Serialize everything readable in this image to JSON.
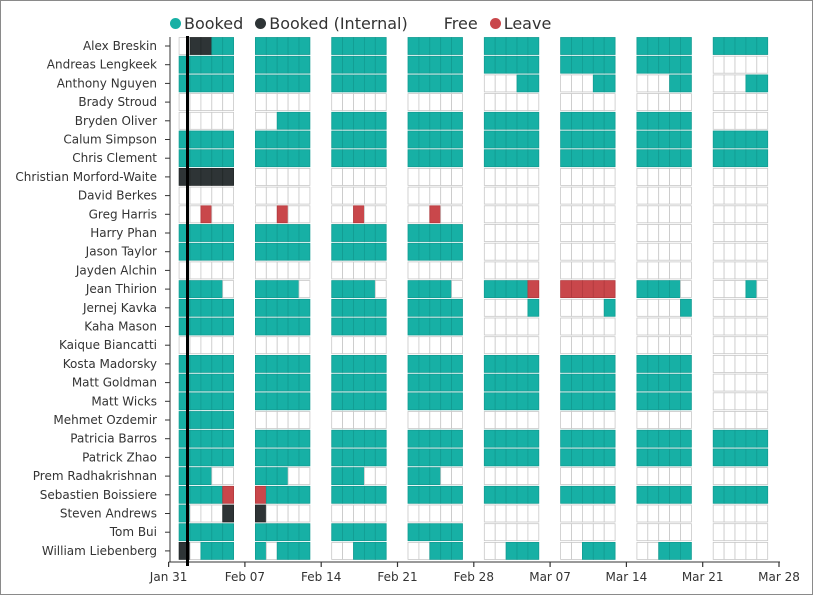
{
  "chart_data": {
    "type": "heatmap",
    "title": "",
    "legend": {
      "placement": "top-left",
      "items": [
        {
          "key": "B",
          "label": "Booked",
          "color": "#17b0a5"
        },
        {
          "key": "I",
          "label": "Booked (Internal)",
          "color": "#2e3436"
        },
        {
          "key": "F",
          "label": "Free",
          "color": "#ffffff"
        },
        {
          "key": "L",
          "label": "Leave",
          "color": "#c9474b"
        }
      ]
    },
    "x_tick_labels": [
      "Jan 31",
      "Feb 07",
      "Feb 14",
      "Feb 21",
      "Feb 28",
      "Mar 07",
      "Mar 14",
      "Mar 21",
      "Mar 28"
    ],
    "x_range": [
      "Jan 31",
      "Mar 28"
    ],
    "days_shown": "weekdays (Mon–Fri), 8 weeks starting Jan 31",
    "today_marker_date": "Feb 01",
    "rows": [
      {
        "name": "Alex Breskin",
        "days": "FIIBB BBBBB BBBBB BBBBB BBBBB BBBBB BBBBB BBBBB"
      },
      {
        "name": "Andreas Lengkeek",
        "days": "BBBBB BBBBB BBBBB BBBBB BBBBB BBBBB BBBBB FFFFF"
      },
      {
        "name": "Anthony Nguyen",
        "days": "BBBBB BBBBB BBBBB BBBBB FFFBB FFFBB FFFBB FFFBB"
      },
      {
        "name": "Brady Stroud",
        "days": "FFFFF FFFFF FFFFF FFFFF FFFFF FFFFF FFFFF FFFFF"
      },
      {
        "name": "Bryden Oliver",
        "days": "FFFFF FFBBB BBBBB BBBBB BBBBB BBBBB BBBBB FFFFF"
      },
      {
        "name": "Calum Simpson",
        "days": "BBBBB BBBBB BBBBB BBBBB BBBBB BBBBB BBBBB BBBBB"
      },
      {
        "name": "Chris Clement",
        "days": "BBBBB BBBBB BBBBB BBBBB BBBBB BBBBB BBBBB BBBBB"
      },
      {
        "name": "Christian Morford-Waite",
        "days": "IIIII FFFFF FFFFF FFFFF FFFFF FFFFF FFFFF FFFFF"
      },
      {
        "name": "David Berkes",
        "days": "FFFFF FFFFF FFFFF FFFFF FFFFF FFFFF FFFFF FFFFF"
      },
      {
        "name": "Greg Harris",
        "days": "FFLFF FFLFF FFLFF FFLFF FFFFF FFFFF FFFFF FFFFF"
      },
      {
        "name": "Harry Phan",
        "days": "BBBBB BBBBB BBBBB BBBBB FFFFF FFFFF FFFFF FFFFF"
      },
      {
        "name": "Jason Taylor",
        "days": "BBBBB BBBBB BBBBB BBBBB FFFFF FFFFF FFFFF FFFFF"
      },
      {
        "name": "Jayden Alchin",
        "days": "FFFFF FFFFF FFFFF FFFFF FFFFF FFFFF FFFFF FFFFF"
      },
      {
        "name": "Jean Thirion",
        "days": "BBBBF BBBBF BBBBF BBBBF BBBBL LLLLL BBBBF FFFBF"
      },
      {
        "name": "Jernej Kavka",
        "days": "BBBBB BBBBB BBBBB BBBBB FFFFB FFFFB FFFFB FFFFF"
      },
      {
        "name": "Kaha Mason",
        "days": "BBBBB BBBBB BBBBB BBBBB FFFFF FFFFF FFFFF FFFFF"
      },
      {
        "name": "Kaique Biancatti",
        "days": "FFFFF FFFFF FFFFF FFFFF FFFFF FFFFF FFFFF FFFFF"
      },
      {
        "name": "Kosta Madorsky",
        "days": "BBBBB BBBBB BBBBB BBBBB BBBBB BBBBB BBBBB FFFFF"
      },
      {
        "name": "Matt Goldman",
        "days": "BBBBB BBBBB BBBBB BBBBB BBBBB BBBBB BBBBB FFFFF"
      },
      {
        "name": "Matt Wicks",
        "days": "BBBBB BBBBB BBBBB BBBBB BBBBB BBBBB BBBBB FFFFF"
      },
      {
        "name": "Mehmet Ozdemir",
        "days": "BBBBB FFFFF FFFFF FFFFF FFFFF FFFFF FFFFF FFFFF"
      },
      {
        "name": "Patricia Barros",
        "days": "BBBBB BBBBB BBBBB BBBBB BBBBB BBBBB BBBBB BBBBB"
      },
      {
        "name": "Patrick Zhao",
        "days": "BBBBB BBBBB BBBBB BBBBB BBBBB BBBBB BBBBB BBBBB"
      },
      {
        "name": "Prem Radhakrishnan",
        "days": "BBBFF BBBFF BBBFF BBBFF FFFFF FFFFF FFFFF FFFFF"
      },
      {
        "name": "Sebastien Boissiere",
        "days": "BBBBL LBBBB BBBBB BBBBB BBBBB BBBBB BBBBB BBBBB"
      },
      {
        "name": "Steven Andrews",
        "days": "BFFFI IFFFF FFFFF FFFFF FFFFF FFFFF FFFFF FFFFF"
      },
      {
        "name": "Tom Bui",
        "days": "BBBBB BBBBB BBBBB BBBBB FFFFF FFFFF FFFFF FFFFF"
      },
      {
        "name": "William Liebenberg",
        "days": "IFBBB BFBBB FFBBB FFBBB FFBBB FFBBB FFBBB FFFFF"
      }
    ]
  }
}
